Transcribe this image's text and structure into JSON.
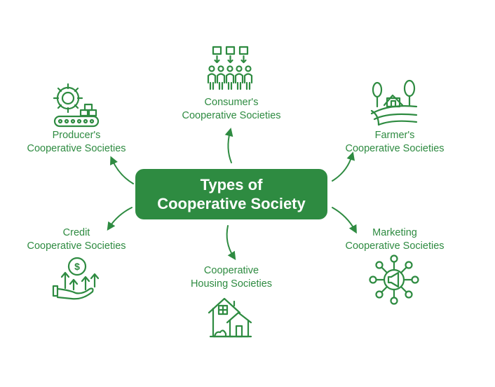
{
  "center": {
    "line1": "Types of",
    "line2": "Cooperative Society"
  },
  "nodes": {
    "consumer": {
      "line1": "Consumer's",
      "line2": "Cooperative Societies",
      "icon": "consumers-icon"
    },
    "producer": {
      "line1": "Producer's",
      "line2": "Cooperative Societies",
      "icon": "factory-gear-icon"
    },
    "farmer": {
      "line1": "Farmer's",
      "line2": "Cooperative Societies",
      "icon": "farm-icon"
    },
    "credit": {
      "line1": "Credit",
      "line2": "Cooperative Societies",
      "icon": "money-growth-icon"
    },
    "marketing": {
      "line1": "Marketing",
      "line2": "Cooperative Societies",
      "icon": "megaphone-network-icon"
    },
    "housing": {
      "line1": "Cooperative",
      "line2": "Housing Societies",
      "icon": "house-icon"
    }
  },
  "colors": {
    "accent": "#2e8b41",
    "background": "#ffffff",
    "center_text": "#ffffff"
  }
}
